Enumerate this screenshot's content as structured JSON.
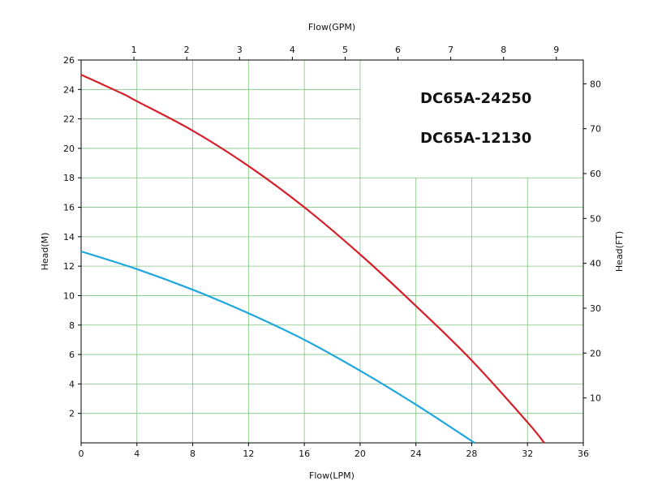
{
  "chart_data": {
    "type": "line",
    "x_bottom": {
      "label": "Flow(LPM)",
      "range": [
        0,
        36
      ],
      "ticks": [
        0,
        4,
        8,
        12,
        16,
        20,
        24,
        28,
        32,
        36
      ],
      "tick_labels": [
        "0",
        "4",
        "8",
        "12",
        "16",
        "20",
        "24",
        "28",
        "32",
        "36"
      ]
    },
    "x_top": {
      "label": "Flow(GPM)",
      "ticks": [
        1,
        2,
        3,
        4,
        5,
        6,
        7,
        8,
        9
      ],
      "tick_labels": [
        "1",
        "2",
        "3",
        "4",
        "5",
        "6",
        "7",
        "8",
        "9"
      ]
    },
    "y_left": {
      "label": "Head(M)",
      "range": [
        0,
        26
      ],
      "ticks": [
        2,
        4,
        6,
        8,
        10,
        12,
        14,
        16,
        18,
        20,
        22,
        24,
        26
      ],
      "tick_labels": [
        "2",
        "4",
        "6",
        "8",
        "10",
        "12",
        "14",
        "16",
        "18",
        "20",
        "22",
        "24",
        "26"
      ]
    },
    "y_right": {
      "label": "Head(FT)",
      "ticks": [
        10,
        20,
        30,
        40,
        50,
        60,
        70,
        80
      ],
      "tick_labels": [
        "10",
        "20",
        "30",
        "40",
        "50",
        "60",
        "70",
        "80"
      ]
    },
    "grid": true,
    "legend_position": "top-right",
    "series": [
      {
        "name": "DC65A-24250",
        "color": "#d51f2a",
        "x": [
          0,
          3,
          4,
          8,
          12,
          16,
          20,
          24,
          28,
          32,
          33.2
        ],
        "y": [
          25,
          23.7,
          23.2,
          21.2,
          18.8,
          16.0,
          12.8,
          9.3,
          5.6,
          1.4,
          0
        ]
      },
      {
        "name": "DC65A-12130",
        "color": "#1ea7de",
        "x": [
          0,
          4,
          8,
          12,
          16,
          20,
          24,
          28.2
        ],
        "y": [
          13,
          11.8,
          10.4,
          8.8,
          7.0,
          4.9,
          2.6,
          0
        ]
      }
    ]
  }
}
